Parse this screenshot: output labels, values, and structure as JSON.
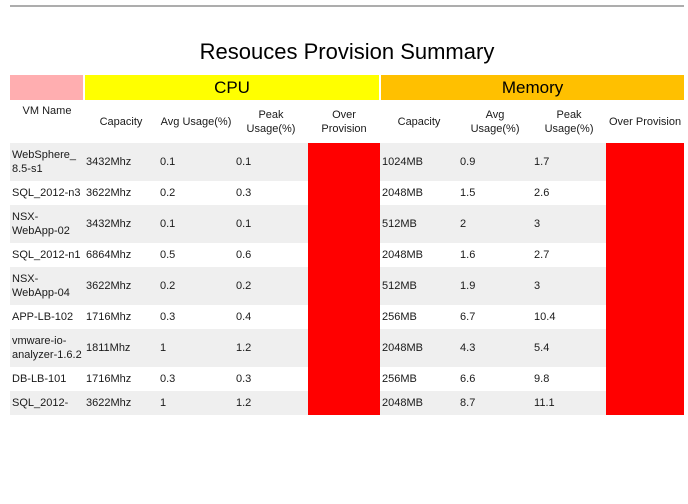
{
  "report": {
    "title": "Resouces Provision Summary"
  },
  "table": {
    "groups": {
      "vm": {
        "label": "",
        "color": "#ffaeb0"
      },
      "cpu": {
        "label": "CPU",
        "color": "#ffff00"
      },
      "memory": {
        "label": "Memory",
        "color": "#ffc000"
      }
    },
    "columns": [
      "VM Name",
      "Capacity",
      "Avg Usage(%)",
      "Peak Usage(%)",
      "Over Provision",
      "Capacity",
      "Avg Usage(%)",
      "Peak Usage(%)",
      "Over Provision"
    ],
    "over_provision_color": "#ff0000",
    "stripe_color": "#efefef",
    "rows": [
      {
        "vm_name": "WebSphere_8.5-s1",
        "cpu": {
          "capacity": "3432Mhz",
          "avg_usage_pct": "0.1",
          "peak_usage_pct": "0.1",
          "over_provision": ""
        },
        "memory": {
          "capacity": "1024MB",
          "avg_usage_pct": "0.9",
          "peak_usage_pct": "1.7",
          "over_provision": ""
        }
      },
      {
        "vm_name": "SQL_2012-n3",
        "cpu": {
          "capacity": "3622Mhz",
          "avg_usage_pct": "0.2",
          "peak_usage_pct": "0.3",
          "over_provision": ""
        },
        "memory": {
          "capacity": "2048MB",
          "avg_usage_pct": "1.5",
          "peak_usage_pct": "2.6",
          "over_provision": ""
        }
      },
      {
        "vm_name": "NSX-WebApp-02",
        "cpu": {
          "capacity": "3432Mhz",
          "avg_usage_pct": "0.1",
          "peak_usage_pct": "0.1",
          "over_provision": ""
        },
        "memory": {
          "capacity": "512MB",
          "avg_usage_pct": "2",
          "peak_usage_pct": "3",
          "over_provision": ""
        }
      },
      {
        "vm_name": "SQL_2012-n1",
        "cpu": {
          "capacity": "6864Mhz",
          "avg_usage_pct": "0.5",
          "peak_usage_pct": "0.6",
          "over_provision": ""
        },
        "memory": {
          "capacity": "2048MB",
          "avg_usage_pct": "1.6",
          "peak_usage_pct": "2.7",
          "over_provision": ""
        }
      },
      {
        "vm_name": "NSX-WebApp-04",
        "cpu": {
          "capacity": "3622Mhz",
          "avg_usage_pct": "0.2",
          "peak_usage_pct": "0.2",
          "over_provision": ""
        },
        "memory": {
          "capacity": "512MB",
          "avg_usage_pct": "1.9",
          "peak_usage_pct": "3",
          "over_provision": ""
        }
      },
      {
        "vm_name": "APP-LB-102",
        "cpu": {
          "capacity": "1716Mhz",
          "avg_usage_pct": "0.3",
          "peak_usage_pct": "0.4",
          "over_provision": ""
        },
        "memory": {
          "capacity": "256MB",
          "avg_usage_pct": "6.7",
          "peak_usage_pct": "10.4",
          "over_provision": ""
        }
      },
      {
        "vm_name": "vmware-io-analyzer-1.6.2",
        "cpu": {
          "capacity": "1811Mhz",
          "avg_usage_pct": "1",
          "peak_usage_pct": "1.2",
          "over_provision": ""
        },
        "memory": {
          "capacity": "2048MB",
          "avg_usage_pct": "4.3",
          "peak_usage_pct": "5.4",
          "over_provision": ""
        }
      },
      {
        "vm_name": "DB-LB-101",
        "cpu": {
          "capacity": "1716Mhz",
          "avg_usage_pct": "0.3",
          "peak_usage_pct": "0.3",
          "over_provision": ""
        },
        "memory": {
          "capacity": "256MB",
          "avg_usage_pct": "6.6",
          "peak_usage_pct": "9.8",
          "over_provision": ""
        }
      },
      {
        "vm_name": "SQL_2012-",
        "cpu": {
          "capacity": "3622Mhz",
          "avg_usage_pct": "1",
          "peak_usage_pct": "1.2",
          "over_provision": ""
        },
        "memory": {
          "capacity": "2048MB",
          "avg_usage_pct": "8.7",
          "peak_usage_pct": "11.1",
          "over_provision": ""
        }
      }
    ]
  }
}
